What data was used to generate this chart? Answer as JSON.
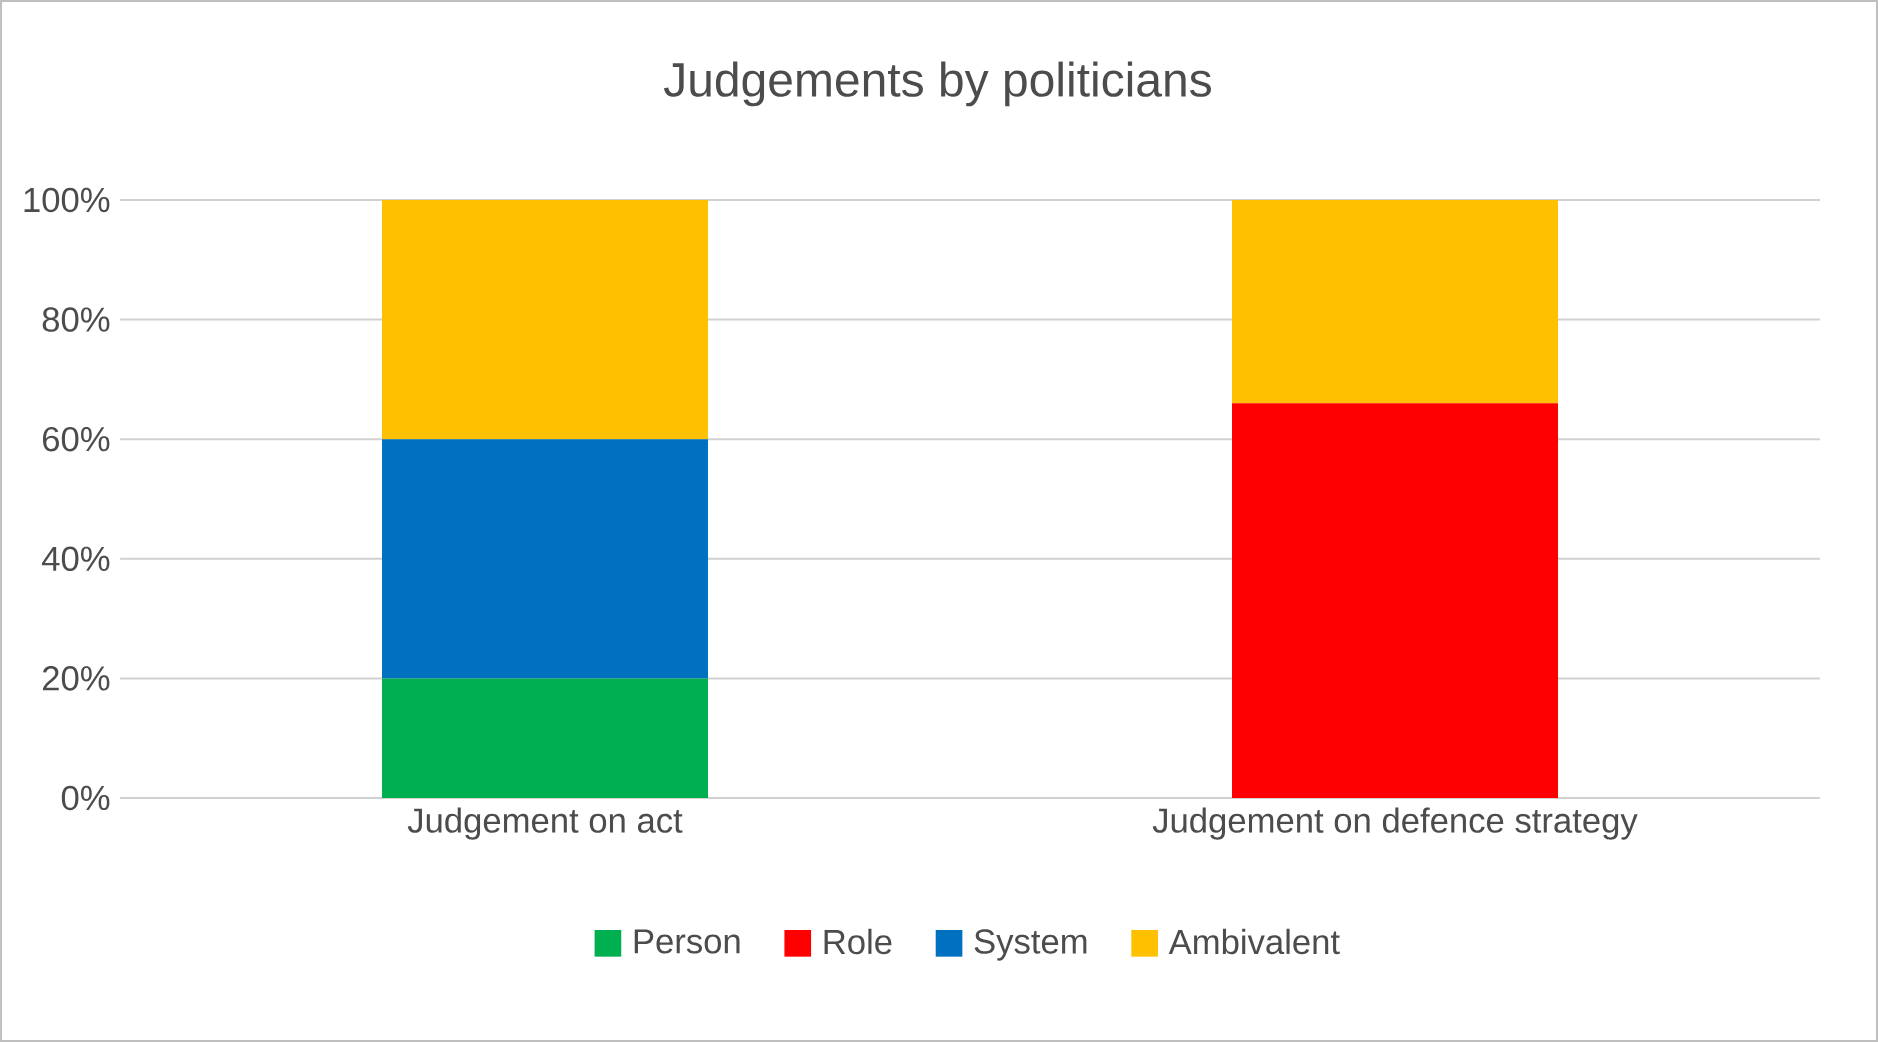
{
  "chart_data": {
    "type": "bar",
    "stacked": true,
    "title": "Judgements by politicians",
    "categories": [
      "Judgement on act",
      "Judgement on defence strategy"
    ],
    "series": [
      {
        "name": "Person",
        "color": "#00b050",
        "values": [
          20,
          0
        ]
      },
      {
        "name": "Role",
        "color": "#ff0000",
        "values": [
          0,
          66
        ]
      },
      {
        "name": "System",
        "color": "#0070c0",
        "values": [
          40,
          0
        ]
      },
      {
        "name": "Ambivalent",
        "color": "#ffc000",
        "values": [
          40,
          34
        ]
      }
    ],
    "ylim": [
      0,
      100
    ],
    "yticks": [
      {
        "value": 0,
        "label": "0%"
      },
      {
        "value": 20,
        "label": "20%"
      },
      {
        "value": 40,
        "label": "40%"
      },
      {
        "value": 60,
        "label": "60%"
      },
      {
        "value": 80,
        "label": "80%"
      },
      {
        "value": 100,
        "label": "100%"
      }
    ],
    "grid": "y",
    "legend": "bottom"
  }
}
